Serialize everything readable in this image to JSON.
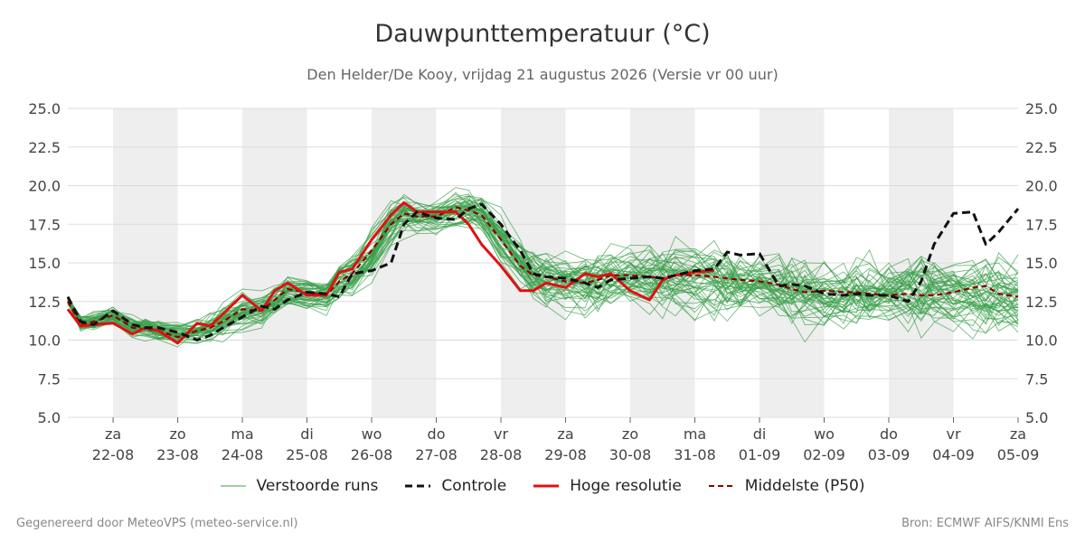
{
  "header": {
    "title": "Dauwpunttemperatuur (°C)",
    "subtitle": "Den Helder/De Kooy, vrijdag 21 augustus 2026 (Versie vr 00 uur)"
  },
  "footer": {
    "left": "Gegenereerd door MeteoVPS (meteo-service.nl)",
    "right": "Bron: ECMWF AIFS/KNMI Ens"
  },
  "chart_data": {
    "type": "line",
    "y_ticks": [
      "25.0",
      "22.5",
      "20.0",
      "17.5",
      "15.0",
      "12.5",
      "10.0",
      "7.5",
      "5.0"
    ],
    "ylim": [
      5,
      25
    ],
    "xlim": [
      -0.7,
      14
    ],
    "grid": true,
    "shaded_days": true,
    "legend_position": "bottom",
    "x_ticks": [
      {
        "x": 0,
        "day": "za",
        "date": "22-08"
      },
      {
        "x": 1,
        "day": "zo",
        "date": "23-08"
      },
      {
        "x": 2,
        "day": "ma",
        "date": "24-08"
      },
      {
        "x": 3,
        "day": "di",
        "date": "25-08"
      },
      {
        "x": 4,
        "day": "wo",
        "date": "26-08"
      },
      {
        "x": 5,
        "day": "do",
        "date": "27-08"
      },
      {
        "x": 6,
        "day": "vr",
        "date": "28-08"
      },
      {
        "x": 7,
        "day": "za",
        "date": "29-08"
      },
      {
        "x": 8,
        "day": "zo",
        "date": "30-08"
      },
      {
        "x": 9,
        "day": "ma",
        "date": "31-08"
      },
      {
        "x": 10,
        "day": "di",
        "date": "01-09"
      },
      {
        "x": 11,
        "day": "wo",
        "date": "02-09"
      },
      {
        "x": 12,
        "day": "do",
        "date": "03-09"
      },
      {
        "x": 13,
        "day": "vr",
        "date": "04-09"
      },
      {
        "x": 14,
        "day": "za",
        "date": "05-09"
      }
    ],
    "legend": [
      {
        "key": "ens",
        "label": "Verstoorde runs"
      },
      {
        "key": "ctrl",
        "label": "Controle"
      },
      {
        "key": "hres",
        "label": "Hoge resolutie"
      },
      {
        "key": "p50",
        "label": "Middelste (P50)"
      }
    ],
    "colors": {
      "ens": "#3aa04a",
      "ctrl": "#111111",
      "hres": "#e01010",
      "p50": "#8b0000",
      "shade": "#eeeeee",
      "grid": "#dddddd"
    },
    "series_control": {
      "x": [
        -0.7,
        -0.5,
        -0.3,
        0,
        0.3,
        0.5,
        0.7,
        1,
        1.3,
        1.5,
        1.7,
        2,
        2.3,
        2.5,
        2.7,
        3,
        3.3,
        3.5,
        3.7,
        4,
        4.3,
        4.5,
        4.7,
        5,
        5.3,
        5.5,
        5.7,
        6,
        6.3,
        6.5,
        6.7,
        7,
        7.3,
        7.5,
        7.7,
        8,
        8.3,
        8.5,
        8.7,
        9,
        9.3,
        9.5,
        9.7,
        10,
        10.3,
        10.5,
        10.7,
        11,
        11.3,
        11.5,
        11.7,
        12,
        12.3,
        12.5,
        12.7,
        13,
        13.3,
        13.5,
        13.7,
        14
      ],
      "y": [
        12.8,
        11.2,
        11.0,
        11.9,
        11.0,
        10.8,
        10.8,
        10.5,
        10.0,
        10.3,
        10.8,
        11.5,
        12.2,
        12.0,
        12.6,
        13.1,
        13.0,
        12.8,
        14.3,
        14.5,
        15.0,
        17.5,
        18.3,
        17.9,
        17.8,
        18.5,
        18.8,
        17.5,
        15.8,
        14.3,
        14.1,
        14.0,
        13.7,
        13.4,
        13.9,
        14.0,
        14.1,
        14.0,
        14.2,
        14.5,
        14.6,
        15.7,
        15.5,
        15.6,
        13.5,
        13.6,
        13.5,
        13.0,
        12.9,
        13.0,
        12.9,
        12.9,
        12.5,
        13.8,
        16.2,
        18.2,
        18.3,
        16.2,
        17.0,
        18.5
      ]
    },
    "series_hres": {
      "x": [
        -0.7,
        -0.5,
        -0.3,
        0,
        0.3,
        0.5,
        0.7,
        1,
        1.3,
        1.5,
        1.7,
        2,
        2.3,
        2.5,
        2.7,
        3,
        3.3,
        3.5,
        3.7,
        4,
        4.3,
        4.5,
        4.7,
        5,
        5.3,
        5.5,
        5.7,
        6,
        6.3,
        6.5,
        6.7,
        7,
        7.3,
        7.5,
        7.7,
        8,
        8.3,
        8.5,
        8.7,
        9,
        9.3
      ],
      "y": [
        12.0,
        10.9,
        11.0,
        11.1,
        10.4,
        10.8,
        10.6,
        9.8,
        11.1,
        10.9,
        11.7,
        12.9,
        11.9,
        13.2,
        13.7,
        12.9,
        12.9,
        14.4,
        14.6,
        16.5,
        18.1,
        18.9,
        18.3,
        18.3,
        18.3,
        17.5,
        16.2,
        14.8,
        13.2,
        13.2,
        13.7,
        13.4,
        14.3,
        14.1,
        14.3,
        13.2,
        12.6,
        13.9,
        14.2,
        14.4,
        14.5
      ]
    },
    "series_p50": {
      "x": [
        -0.7,
        -0.5,
        -0.3,
        0,
        0.3,
        0.5,
        0.7,
        1,
        1.3,
        1.5,
        1.7,
        2,
        2.3,
        2.5,
        2.7,
        3,
        3.3,
        3.5,
        3.7,
        4,
        4.3,
        4.5,
        4.7,
        5,
        5.3,
        5.5,
        5.7,
        6,
        6.3,
        6.5,
        6.7,
        7,
        7.3,
        7.5,
        7.7,
        8,
        8.3,
        8.5,
        8.7,
        9,
        9.3,
        9.5,
        9.7,
        10,
        10.3,
        10.5,
        10.7,
        11,
        11.3,
        11.5,
        11.7,
        12,
        12.3,
        12.5,
        12.7,
        13,
        13.3,
        13.5,
        13.7,
        14
      ],
      "y": [
        12.5,
        11.0,
        11.2,
        11.6,
        10.8,
        10.7,
        10.6,
        10.2,
        10.6,
        10.8,
        11.2,
        12.0,
        11.9,
        12.6,
        13.3,
        13.1,
        12.9,
        13.8,
        14.3,
        15.8,
        17.5,
        18.2,
        18.0,
        18.0,
        18.6,
        18.4,
        18.1,
        16.5,
        14.8,
        14.2,
        14.1,
        13.8,
        13.7,
        13.9,
        14.2,
        14.2,
        14.1,
        14.0,
        14.2,
        14.2,
        14.1,
        14.0,
        13.9,
        13.8,
        13.6,
        13.3,
        13.1,
        13.2,
        13.1,
        13.1,
        13.0,
        12.9,
        13.0,
        12.9,
        12.9,
        13.1,
        13.4,
        13.5,
        13.0,
        12.8
      ]
    },
    "ensemble": {
      "count": 50,
      "x": [
        -0.7,
        -0.5,
        -0.3,
        0,
        0.3,
        0.5,
        0.7,
        1,
        1.3,
        1.5,
        1.7,
        2,
        2.3,
        2.5,
        2.7,
        3,
        3.3,
        3.5,
        3.7,
        4,
        4.3,
        4.5,
        4.7,
        5,
        5.3,
        5.5,
        5.7,
        6,
        6.3,
        6.5,
        6.7,
        7,
        7.3,
        7.5,
        7.7,
        8,
        8.3,
        8.5,
        8.7,
        9,
        9.3,
        9.5,
        9.7,
        10,
        10.3,
        10.5,
        10.7,
        11,
        11.3,
        11.5,
        11.7,
        12,
        12.3,
        12.5,
        12.7,
        13,
        13.3,
        13.5,
        13.7,
        14
      ],
      "mean": [
        12.6,
        11.1,
        11.2,
        11.6,
        10.8,
        10.8,
        10.6,
        10.4,
        10.7,
        10.9,
        11.3,
        11.9,
        12.0,
        12.6,
        13.1,
        13.0,
        12.9,
        13.9,
        14.3,
        15.6,
        17.6,
        18.3,
        18.1,
        18.1,
        18.5,
        18.5,
        18.2,
        16.6,
        14.9,
        14.2,
        14.0,
        13.8,
        13.7,
        13.8,
        14.0,
        14.0,
        14.0,
        14.0,
        14.1,
        14.0,
        13.9,
        13.8,
        13.7,
        13.6,
        13.4,
        13.2,
        13.1,
        13.1,
        13.0,
        13.0,
        12.9,
        12.9,
        12.8,
        12.8,
        12.8,
        12.9,
        13.0,
        13.0,
        12.9,
        12.8
      ],
      "spread": [
        0.3,
        0.5,
        0.6,
        0.6,
        0.7,
        0.7,
        0.7,
        0.8,
        0.9,
        1.0,
        1.0,
        1.1,
        1.1,
        1.1,
        1.0,
        1.0,
        1.0,
        1.2,
        1.3,
        1.4,
        1.3,
        1.2,
        1.1,
        1.1,
        1.1,
        1.2,
        1.3,
        1.5,
        1.6,
        1.7,
        1.8,
        1.9,
        2.0,
        2.0,
        2.0,
        2.1,
        2.1,
        2.1,
        2.1,
        2.2,
        2.2,
        2.2,
        2.2,
        2.2,
        2.3,
        2.3,
        2.3,
        2.3,
        2.3,
        2.3,
        2.4,
        2.4,
        2.4,
        2.4,
        2.4,
        2.5,
        2.5,
        2.5,
        2.5,
        2.5
      ]
    }
  }
}
